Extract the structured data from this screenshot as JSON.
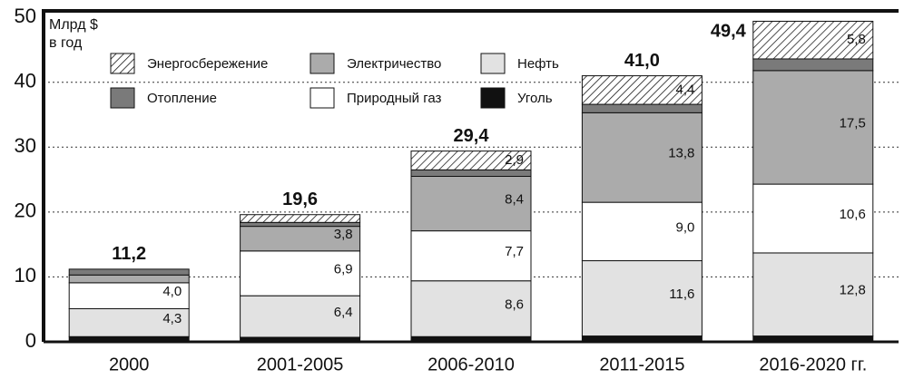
{
  "chart_data": {
    "type": "stacked_bar",
    "ylabel": [
      "Млрд $",
      "в год"
    ],
    "categories": [
      "2000",
      "2001-2005",
      "2006-2010",
      "2011-2015",
      "2016-2020 гг."
    ],
    "series": [
      {
        "name": "Уголь",
        "color": "#111111",
        "values": [
          0.8,
          0.7,
          0.8,
          0.9,
          0.9
        ],
        "value_labels": [
          null,
          null,
          null,
          null,
          null
        ]
      },
      {
        "name": "Нефть",
        "color": "#e2e2e2",
        "values": [
          4.3,
          6.4,
          8.6,
          11.6,
          12.8
        ],
        "value_labels": [
          "4,3",
          "6,4",
          "8,6",
          "11,6",
          "12,8"
        ]
      },
      {
        "name": "Природный газ",
        "color": "#ffffff",
        "values": [
          4.0,
          6.9,
          7.7,
          9.0,
          10.6
        ],
        "value_labels": [
          "4,0",
          "6,9",
          "7,7",
          "9,0",
          "10,6"
        ]
      },
      {
        "name": "Электричество",
        "color": "#ababab",
        "values": [
          1.2,
          3.8,
          8.4,
          13.8,
          17.5
        ],
        "value_labels": [
          null,
          "3,8",
          "8,4",
          "13,8",
          "17,5"
        ]
      },
      {
        "name": "Отопление",
        "color": "#7a7a7a",
        "values": [
          0.9,
          0.6,
          1.0,
          1.3,
          1.8
        ],
        "value_labels": [
          null,
          null,
          null,
          null,
          null
        ]
      },
      {
        "name": "Энергосбережение",
        "color": "#ffffff",
        "hatch": true,
        "values": [
          0,
          1.2,
          2.9,
          4.4,
          5.8
        ],
        "value_labels": [
          null,
          null,
          "2,9",
          "4,4",
          "5,8"
        ]
      }
    ],
    "totals": [
      11.2,
      19.6,
      29.4,
      41.0,
      49.4
    ],
    "total_labels": [
      "11,2",
      "19,6",
      "29,4",
      "41,0",
      "49,4"
    ],
    "ylim": [
      0,
      51
    ],
    "yticks": [
      0,
      10,
      20,
      30,
      40,
      50
    ],
    "grid": true
  }
}
